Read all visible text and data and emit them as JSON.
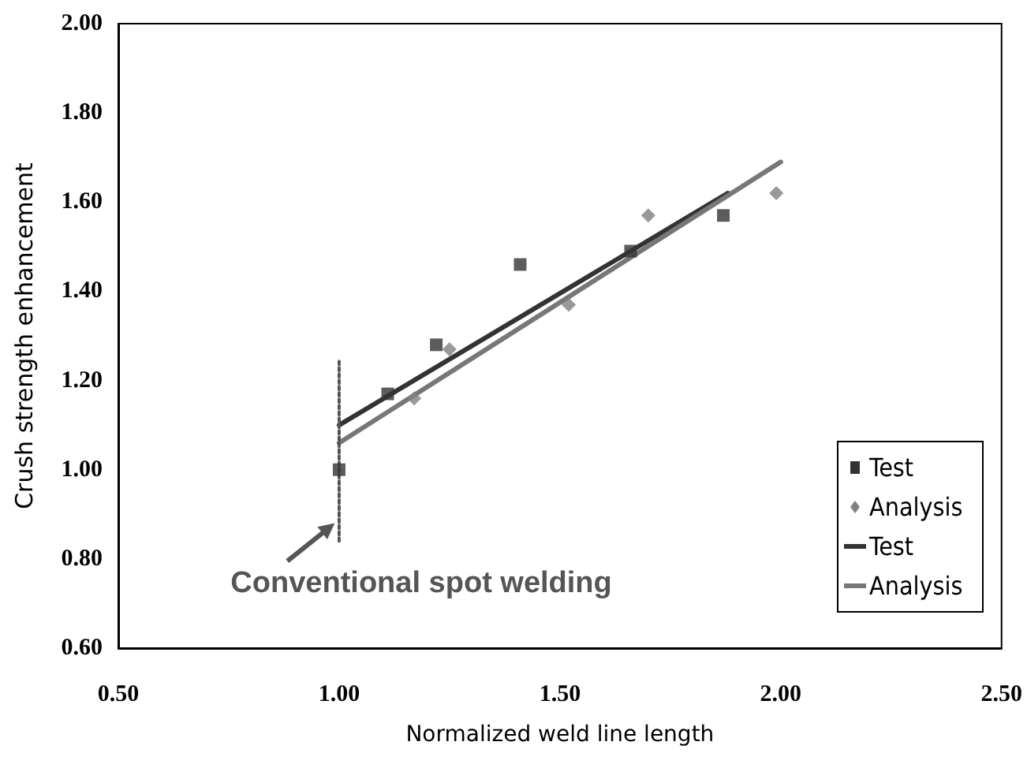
{
  "chart_data": {
    "type": "scatter",
    "xlabel": "Normalized weld line length",
    "ylabel": "Crush strength enhancement",
    "xlim": [
      0.5,
      2.5
    ],
    "xticks": [
      {
        "value": 0.5,
        "label": "0.50"
      },
      {
        "value": 1,
        "label": "1.00"
      },
      {
        "value": 1.5,
        "label": "1.50"
      },
      {
        "value": 2,
        "label": "2.00"
      },
      {
        "value": 2.5,
        "label": "2.50"
      }
    ],
    "ylim": [
      0.6,
      2.0
    ],
    "yticks": [
      {
        "value": 0.6,
        "label": "0.60"
      },
      {
        "value": 0.8,
        "label": "0.80"
      },
      {
        "value": 1.0,
        "label": "1.00"
      },
      {
        "value": 1.2,
        "label": "1.20"
      },
      {
        "value": 1.4,
        "label": "1.40"
      },
      {
        "value": 1.6,
        "label": "1.60"
      },
      {
        "value": 1.8,
        "label": "1.80"
      },
      {
        "value": 2.0,
        "label": "2.00"
      }
    ],
    "grid": false,
    "legend": "bottom right",
    "annotations": [
      {
        "text": "Conventional spot welding",
        "x": 0.99,
        "y": 0.88
      }
    ],
    "series": [
      {
        "name": "Test",
        "type": "scatter",
        "marker": "square",
        "color": "#333333",
        "x": [
          1.0,
          1.11,
          1.22,
          1.41,
          1.66,
          1.87
        ],
        "values": [
          1.0,
          1.17,
          1.28,
          1.46,
          1.49,
          1.57
        ]
      },
      {
        "name": "Analysis",
        "type": "scatter",
        "marker": "diamond",
        "color": "#808080",
        "x": [
          1.17,
          1.25,
          1.52,
          1.7,
          1.99
        ],
        "values": [
          1.16,
          1.27,
          1.37,
          1.57,
          1.62
        ]
      },
      {
        "name": "Test",
        "type": "line",
        "marker": "none",
        "line_style": "solid",
        "color": "#333333",
        "x": [
          1.0,
          1.88
        ],
        "values": [
          1.1,
          1.62
        ]
      },
      {
        "name": "Analysis",
        "type": "line",
        "marker": "none",
        "line_style": "solid",
        "color": "#777777",
        "x": [
          1.0,
          2.0
        ],
        "values": [
          1.06,
          1.69
        ]
      },
      {
        "type": "line",
        "marker": "none",
        "line_style": "dotted",
        "color": "#555555",
        "x": [
          1.0,
          1.0
        ],
        "values": [
          0.84,
          1.25
        ]
      }
    ]
  }
}
